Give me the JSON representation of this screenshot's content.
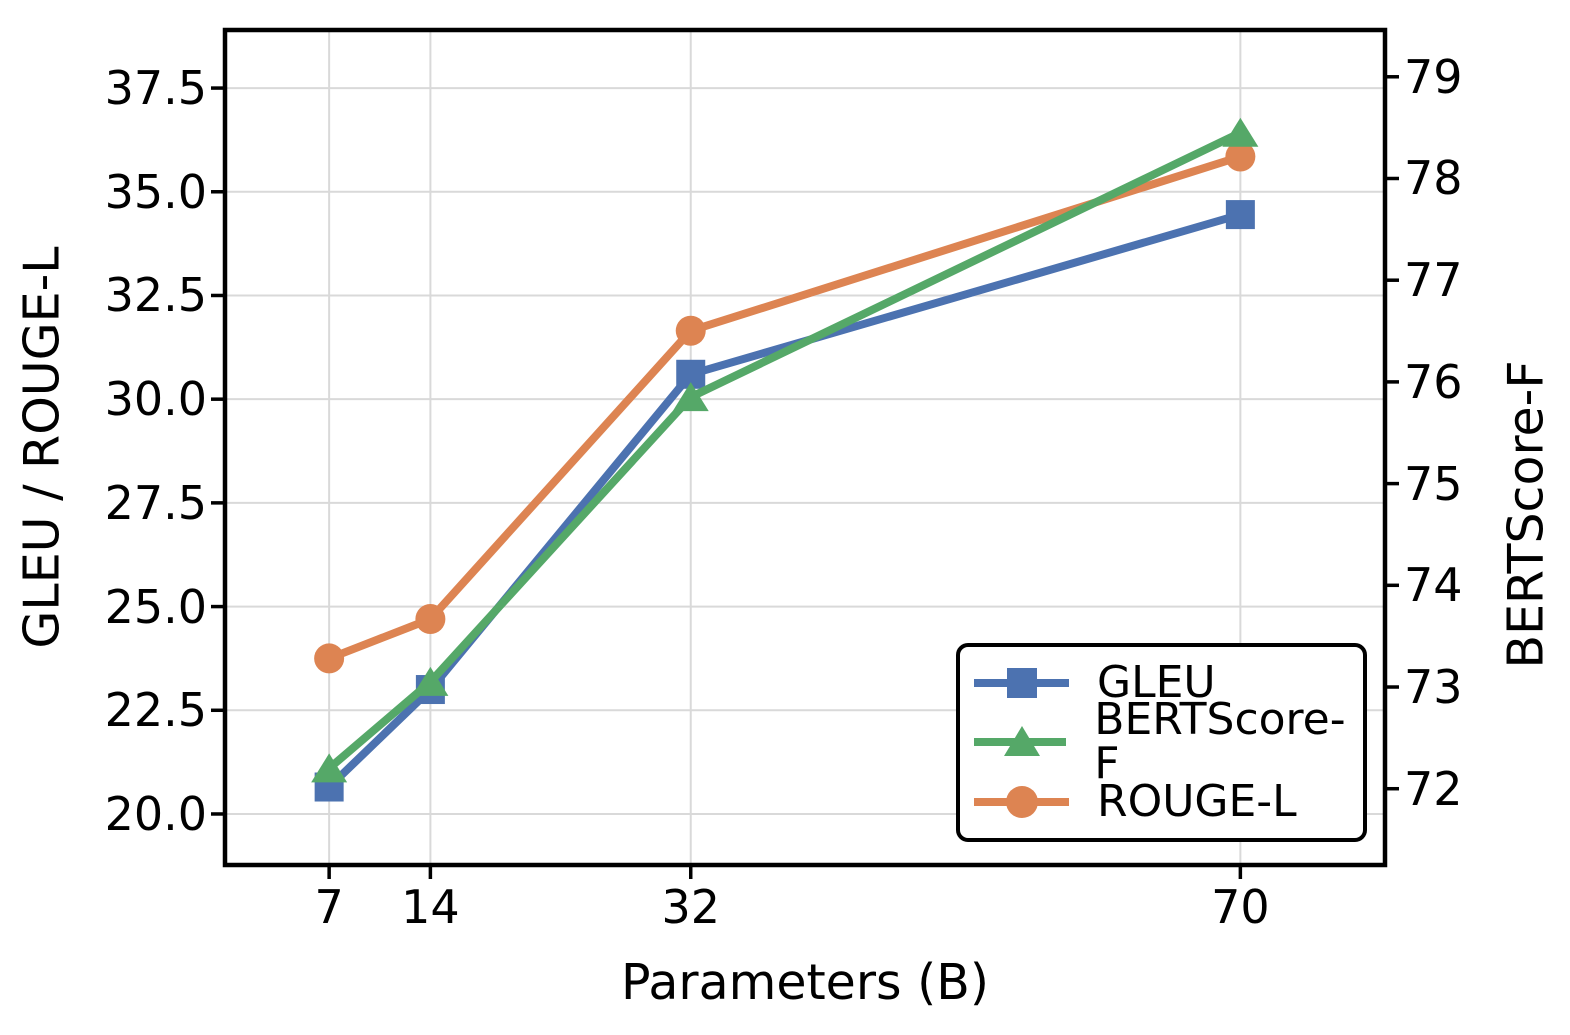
{
  "chart_data": {
    "type": "line",
    "title": "",
    "x_axis": {
      "label": "Parameters (B)",
      "scale": "linear",
      "ticks": [
        7,
        14,
        32,
        70
      ],
      "tick_labels": [
        "7",
        "14",
        "32",
        "70"
      ],
      "range": [
        -0.2,
        80.0
      ]
    },
    "y_axis_left": {
      "label": "GLEU / ROUGE-L",
      "ticks": [
        37.5,
        35.0,
        32.5,
        30.0,
        27.5,
        25.0,
        22.5,
        20.0
      ],
      "tick_labels": [
        "37.5",
        "35.0",
        "32.5",
        "30.0",
        "27.5",
        "25.0",
        "22.5",
        "20.0"
      ],
      "range": [
        18.77,
        38.9
      ]
    },
    "y_axis_right": {
      "label": "BERTScore-F",
      "ticks": [
        79,
        78,
        77,
        76,
        75,
        74,
        73,
        72
      ],
      "tick_labels": [
        "79",
        "78",
        "77",
        "76",
        "75",
        "74",
        "73",
        "72"
      ],
      "range": [
        71.25,
        79.46
      ]
    },
    "grid": "on",
    "legend": {
      "position": "lower right",
      "entries": [
        "GLEU",
        "BERTScore-F",
        "ROUGE-L"
      ]
    },
    "series": [
      {
        "name": "GLEU",
        "axis": "left",
        "color": "#4C72B0",
        "marker": "square",
        "x": [
          7,
          14,
          32,
          70
        ],
        "y": [
          20.65,
          23.0,
          30.6,
          34.45
        ]
      },
      {
        "name": "BERTScore-F",
        "axis": "right",
        "color": "#55A868",
        "marker": "triangle",
        "x": [
          7,
          14,
          32,
          70
        ],
        "y": [
          72.2,
          73.05,
          75.85,
          78.45
        ]
      },
      {
        "name": "ROUGE-L",
        "axis": "left",
        "color": "#DD8452",
        "marker": "circle",
        "x": [
          7,
          14,
          32,
          70
        ],
        "y": [
          23.75,
          24.7,
          31.65,
          35.85
        ]
      }
    ]
  }
}
